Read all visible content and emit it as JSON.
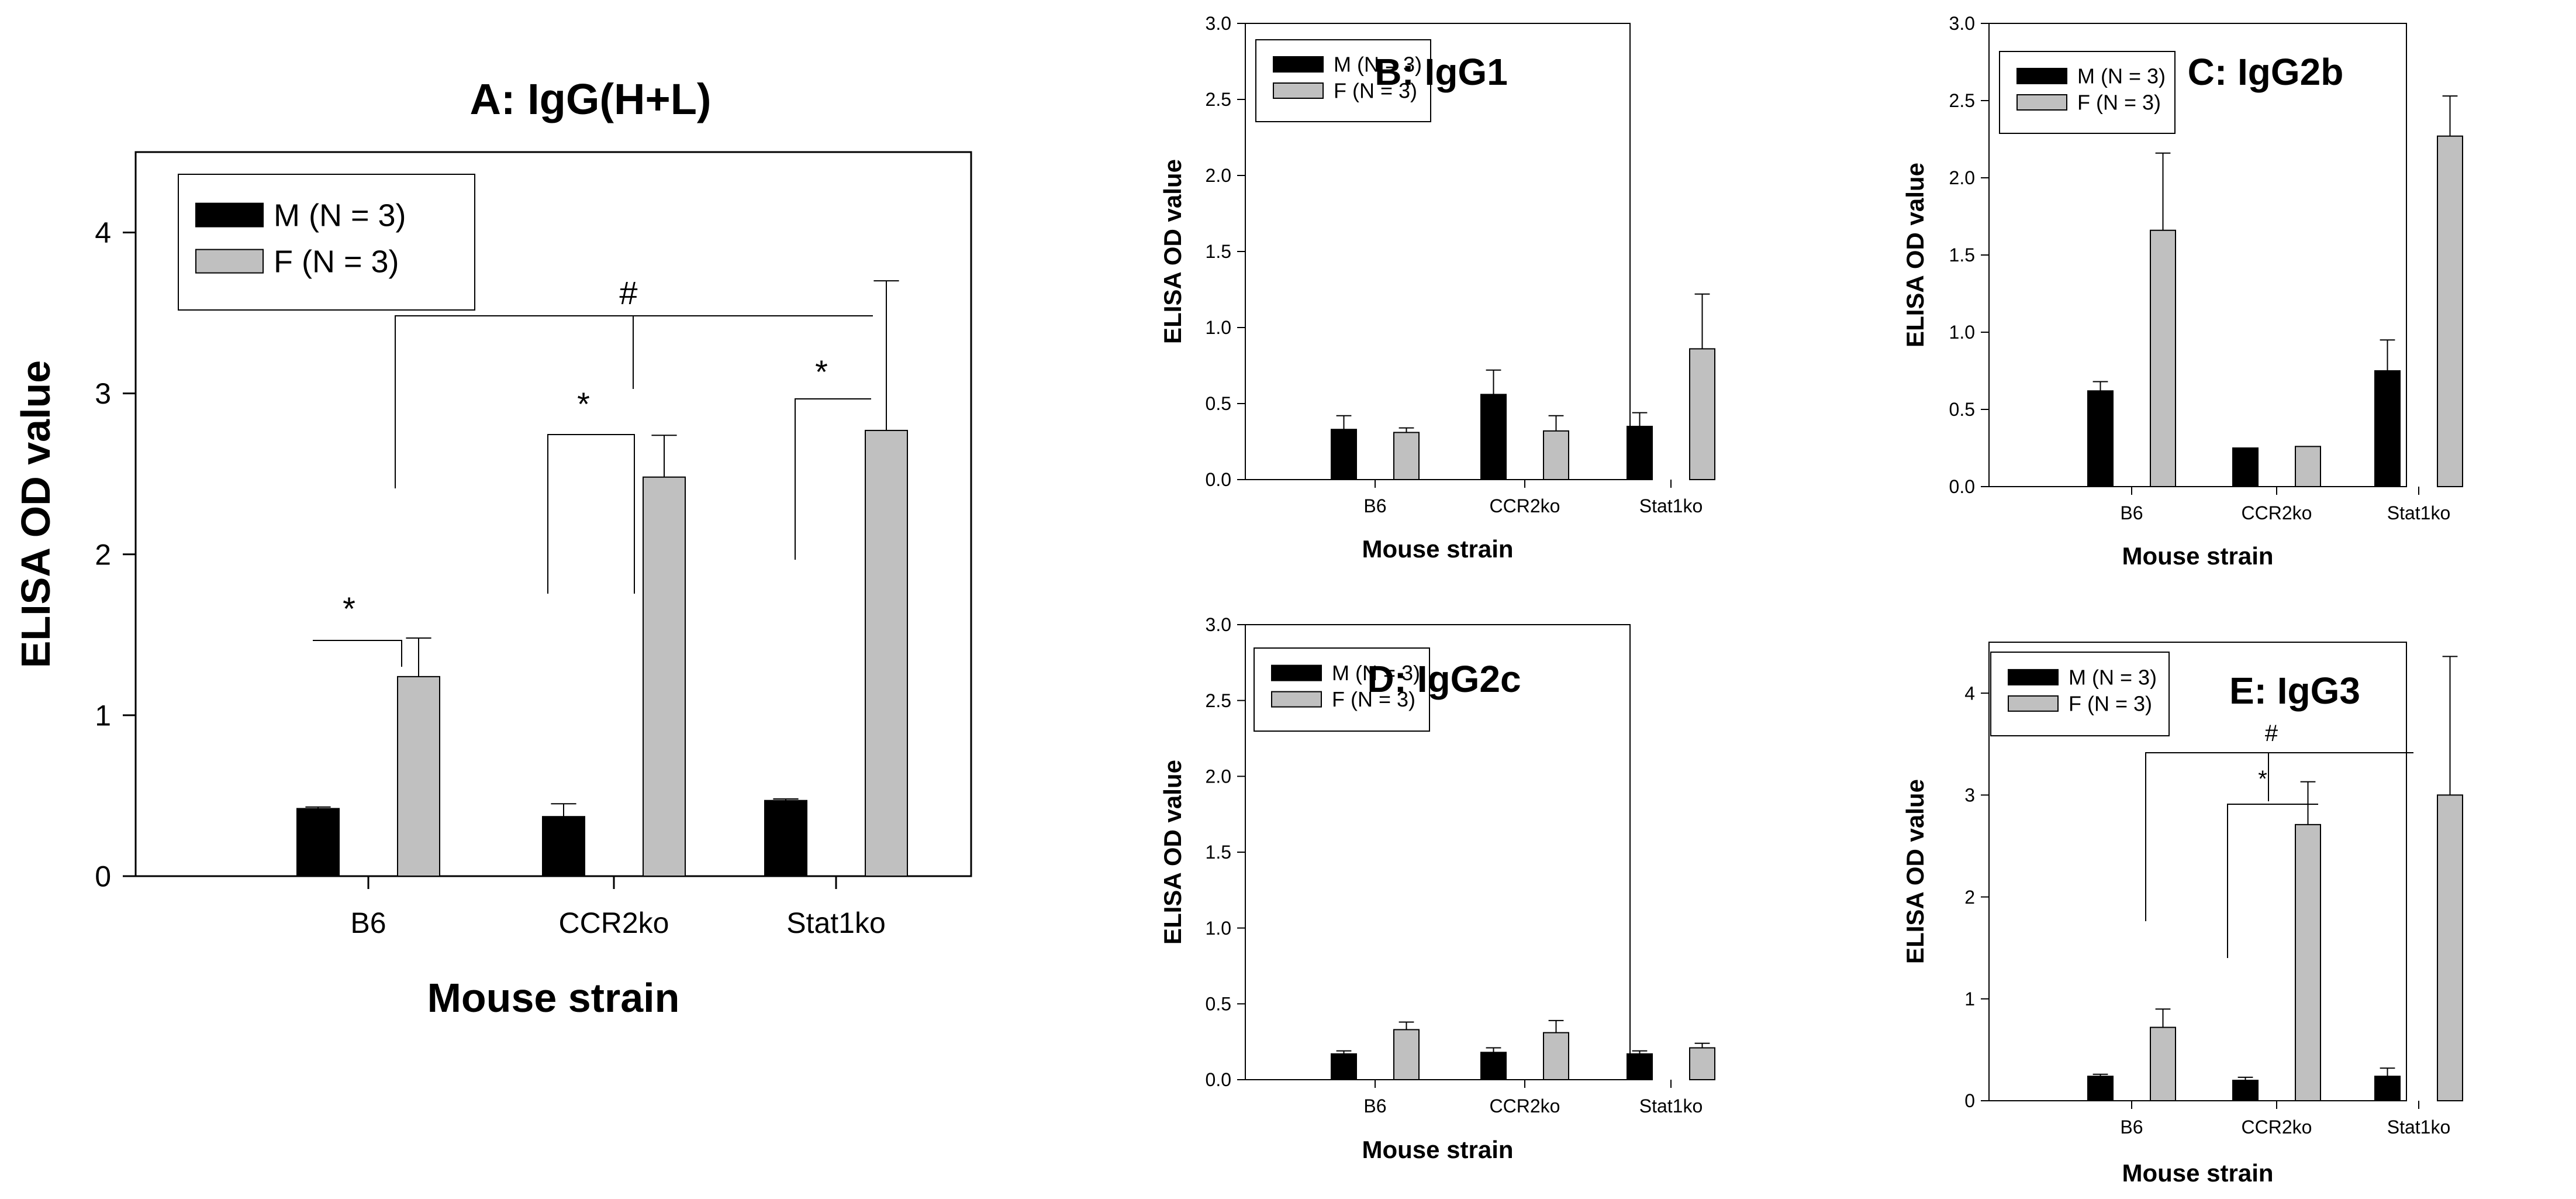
{
  "colors": {
    "male": "#000000",
    "female": "#c0c0c0",
    "axis": "#000000"
  },
  "chart_data": [
    {
      "id": "A",
      "type": "bar",
      "title": "A: IgG(H+L)",
      "xlabel": "Mouse strain",
      "ylabel": "ELISA OD value",
      "ylim": [
        0,
        4.5
      ],
      "yticks": [
        "0",
        "1",
        "2",
        "3",
        "4"
      ],
      "categories": [
        "B6",
        "CCR2ko",
        "Stat1ko"
      ],
      "legend_position": "top-left",
      "series": [
        {
          "name": "M (N = 3)",
          "values": [
            0.42,
            0.37,
            0.47
          ],
          "errors": [
            0.01,
            0.08,
            0.01
          ]
        },
        {
          "name": "F (N = 3)",
          "values": [
            1.24,
            2.48,
            2.77
          ],
          "errors": [
            0.24,
            0.26,
            0.93
          ]
        }
      ],
      "annotations": [
        {
          "label": "*",
          "type": "within",
          "category": 0
        },
        {
          "label": "*",
          "type": "within",
          "category": 1
        },
        {
          "label": "*",
          "type": "within",
          "category": 2
        },
        {
          "label": "#",
          "type": "across",
          "categories": [
            0,
            1,
            2
          ]
        }
      ]
    },
    {
      "id": "B",
      "type": "bar",
      "title": "B: IgG1",
      "xlabel": "Mouse strain",
      "ylabel": "ELISA OD value",
      "ylim": [
        0,
        3.0
      ],
      "yticks": [
        "0.0",
        "0.5",
        "1.0",
        "1.5",
        "2.0",
        "2.5",
        "3.0"
      ],
      "categories": [
        "B6",
        "CCR2ko",
        "Stat1ko"
      ],
      "legend_position": "top-left",
      "series": [
        {
          "name": "M (N = 3)",
          "values": [
            0.33,
            0.56,
            0.35
          ],
          "errors": [
            0.09,
            0.16,
            0.09
          ]
        },
        {
          "name": "F (N = 3)",
          "values": [
            0.31,
            0.32,
            0.86
          ],
          "errors": [
            0.03,
            0.1,
            0.36
          ]
        }
      ],
      "annotations": []
    },
    {
      "id": "C",
      "type": "bar",
      "title": "C: IgG2b",
      "xlabel": "Mouse strain",
      "ylabel": "ELISA OD value",
      "ylim": [
        0,
        3.0
      ],
      "yticks": [
        "0.0",
        "0.5",
        "1.0",
        "1.5",
        "2.0",
        "2.5",
        "3.0"
      ],
      "categories": [
        "B6",
        "CCR2ko",
        "Stat1ko"
      ],
      "legend_position": "top-left",
      "series": [
        {
          "name": "M (N = 3)",
          "values": [
            0.62,
            0.25,
            0.75
          ],
          "errors": [
            0.06,
            0.0,
            0.2
          ]
        },
        {
          "name": "F (N = 3)",
          "values": [
            1.66,
            0.26,
            2.27
          ],
          "errors": [
            0.5,
            0.0,
            0.26
          ]
        }
      ],
      "annotations": []
    },
    {
      "id": "D",
      "type": "bar",
      "title": "D: IgG2c",
      "xlabel": "Mouse strain",
      "ylabel": "ELISA OD value",
      "ylim": [
        0,
        3.0
      ],
      "yticks": [
        "0.0",
        "0.5",
        "1.0",
        "1.5",
        "2.0",
        "2.5",
        "3.0"
      ],
      "categories": [
        "B6",
        "CCR2ko",
        "Stat1ko"
      ],
      "legend_position": "top-left",
      "series": [
        {
          "name": "M (N = 3)",
          "values": [
            0.17,
            0.18,
            0.17
          ],
          "errors": [
            0.02,
            0.03,
            0.02
          ]
        },
        {
          "name": "F (N = 3)",
          "values": [
            0.33,
            0.31,
            0.21
          ],
          "errors": [
            0.05,
            0.08,
            0.03
          ]
        }
      ],
      "annotations": []
    },
    {
      "id": "E",
      "type": "bar",
      "title": "E: IgG3",
      "xlabel": "Mouse strain",
      "ylabel": "ELISA OD value",
      "ylim": [
        0,
        4.5
      ],
      "yticks": [
        "0",
        "1",
        "2",
        "3",
        "4"
      ],
      "categories": [
        "B6",
        "CCR2ko",
        "Stat1ko"
      ],
      "legend_position": "top-left",
      "series": [
        {
          "name": "M (N = 3)",
          "values": [
            0.24,
            0.2,
            0.24
          ],
          "errors": [
            0.02,
            0.03,
            0.08
          ]
        },
        {
          "name": "F (N = 3)",
          "values": [
            0.72,
            2.71,
            3.0
          ],
          "errors": [
            0.18,
            0.42,
            1.36
          ]
        }
      ],
      "annotations": [
        {
          "label": "*",
          "type": "within",
          "category": 1
        },
        {
          "label": "#",
          "type": "across",
          "categories": [
            0,
            1,
            2
          ]
        }
      ]
    }
  ]
}
